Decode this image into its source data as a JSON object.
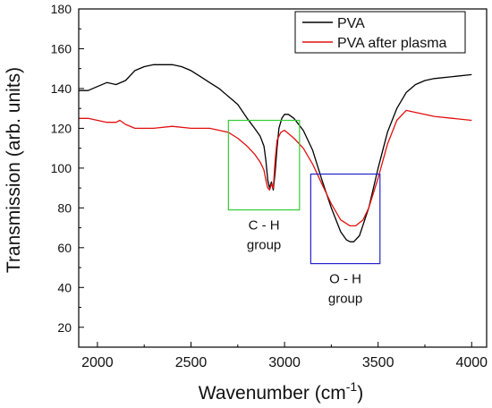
{
  "chart_data": {
    "type": "line",
    "title": "",
    "xlabel": "Wavenumber (cm",
    "xlabel_sup": "-1",
    "xlabel_close": ")",
    "ylabel": "Transmission (arb. units)",
    "xlim": [
      1900,
      4080
    ],
    "ylim": [
      10,
      180
    ],
    "xticks": [
      2000,
      2500,
      3000,
      3500,
      4000
    ],
    "yticks": [
      20,
      40,
      60,
      80,
      100,
      120,
      140,
      160,
      180
    ],
    "grid": false,
    "legend_position": "top-right",
    "series": [
      {
        "name": "PVA",
        "color": "#000000",
        "points": [
          [
            1900,
            139
          ],
          [
            1950,
            139
          ],
          [
            2000,
            141
          ],
          [
            2050,
            143
          ],
          [
            2100,
            142
          ],
          [
            2150,
            144
          ],
          [
            2200,
            149
          ],
          [
            2250,
            151
          ],
          [
            2300,
            152
          ],
          [
            2350,
            152
          ],
          [
            2400,
            152
          ],
          [
            2450,
            151
          ],
          [
            2500,
            149
          ],
          [
            2550,
            146
          ],
          [
            2600,
            143
          ],
          [
            2650,
            140
          ],
          [
            2700,
            136
          ],
          [
            2750,
            132
          ],
          [
            2800,
            125
          ],
          [
            2840,
            120
          ],
          [
            2870,
            116
          ],
          [
            2890,
            111
          ],
          [
            2900,
            104
          ],
          [
            2910,
            94
          ],
          [
            2920,
            90
          ],
          [
            2930,
            93
          ],
          [
            2940,
            89
          ],
          [
            2950,
            98
          ],
          [
            2960,
            110
          ],
          [
            2970,
            120
          ],
          [
            2985,
            125
          ],
          [
            3000,
            127
          ],
          [
            3020,
            127
          ],
          [
            3050,
            125
          ],
          [
            3100,
            119
          ],
          [
            3150,
            109
          ],
          [
            3200,
            94
          ],
          [
            3250,
            80
          ],
          [
            3300,
            68
          ],
          [
            3330,
            64
          ],
          [
            3350,
            63
          ],
          [
            3370,
            63
          ],
          [
            3400,
            66
          ],
          [
            3450,
            80
          ],
          [
            3500,
            100
          ],
          [
            3550,
            118
          ],
          [
            3600,
            130
          ],
          [
            3650,
            138
          ],
          [
            3700,
            142
          ],
          [
            3750,
            144
          ],
          [
            3800,
            145
          ],
          [
            3900,
            146
          ],
          [
            4000,
            147
          ]
        ]
      },
      {
        "name": "PVA after plasma",
        "color": "#e01010",
        "points": [
          [
            1900,
            125
          ],
          [
            1950,
            125
          ],
          [
            2000,
            124
          ],
          [
            2050,
            123
          ],
          [
            2100,
            123
          ],
          [
            2120,
            124
          ],
          [
            2150,
            122
          ],
          [
            2200,
            120
          ],
          [
            2300,
            120
          ],
          [
            2400,
            121
          ],
          [
            2500,
            120
          ],
          [
            2600,
            120
          ],
          [
            2650,
            119
          ],
          [
            2700,
            118
          ],
          [
            2750,
            115
          ],
          [
            2800,
            111
          ],
          [
            2840,
            107
          ],
          [
            2870,
            103
          ],
          [
            2890,
            99
          ],
          [
            2900,
            94
          ],
          [
            2910,
            90
          ],
          [
            2920,
            89
          ],
          [
            2930,
            92
          ],
          [
            2940,
            90
          ],
          [
            2950,
            104
          ],
          [
            2960,
            114
          ],
          [
            2980,
            118
          ],
          [
            3000,
            119
          ],
          [
            3050,
            115
          ],
          [
            3100,
            110
          ],
          [
            3150,
            102
          ],
          [
            3200,
            92
          ],
          [
            3250,
            82
          ],
          [
            3300,
            74
          ],
          [
            3350,
            71
          ],
          [
            3380,
            71
          ],
          [
            3420,
            74
          ],
          [
            3450,
            80
          ],
          [
            3500,
            95
          ],
          [
            3550,
            112
          ],
          [
            3600,
            124
          ],
          [
            3650,
            129
          ],
          [
            3700,
            128
          ],
          [
            3800,
            126
          ],
          [
            3900,
            125
          ],
          [
            4000,
            124
          ]
        ]
      }
    ],
    "annotations": [
      {
        "label_lines": [
          "C - H",
          "group"
        ],
        "box_x": [
          2700,
          3080
        ],
        "box_y": [
          79,
          124
        ],
        "color": "#33cc33"
      },
      {
        "label_lines": [
          "O - H",
          "group"
        ],
        "box_x": [
          3140,
          3510
        ],
        "box_y": [
          52,
          97
        ],
        "color": "#2222cc"
      }
    ]
  }
}
